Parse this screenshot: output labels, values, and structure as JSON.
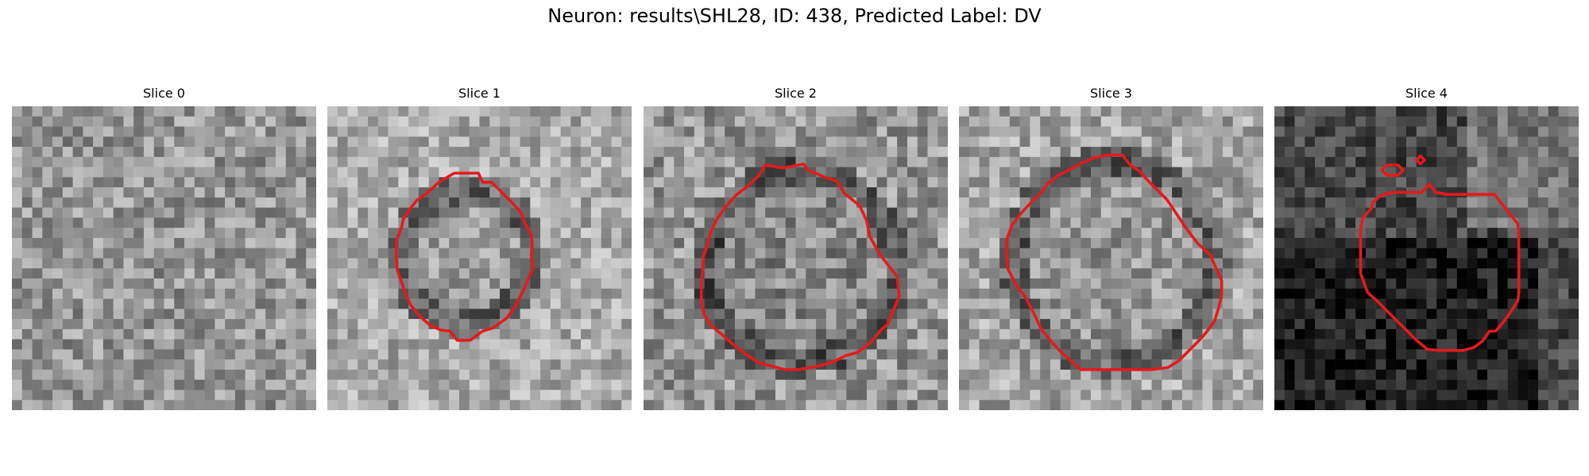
{
  "figure": {
    "title": "Neuron: results\\SHL28, ID: 438, Predicted Label: DV"
  },
  "panels": [
    {
      "title": "Slice 0",
      "base": 150,
      "contrast": 48,
      "dark_mask": false,
      "rois": []
    },
    {
      "title": "Slice 1",
      "base": 170,
      "contrast": 45,
      "dark_mask": true,
      "rois": [
        "main-outline"
      ]
    },
    {
      "title": "Slice 2",
      "base": 150,
      "contrast": 50,
      "dark_mask": true,
      "rois": [
        "main-outline"
      ]
    },
    {
      "title": "Slice 3",
      "base": 165,
      "contrast": 48,
      "dark_mask": true,
      "rois": [
        "main-outline"
      ]
    },
    {
      "title": "Slice 4",
      "base": 70,
      "contrast": 40,
      "dark_mask": true,
      "rois": [
        "main-outline",
        "small-outline-1",
        "small-outline-2"
      ]
    }
  ],
  "colors": {
    "roi_outline": "#e41a1c",
    "background": "#ffffff"
  }
}
